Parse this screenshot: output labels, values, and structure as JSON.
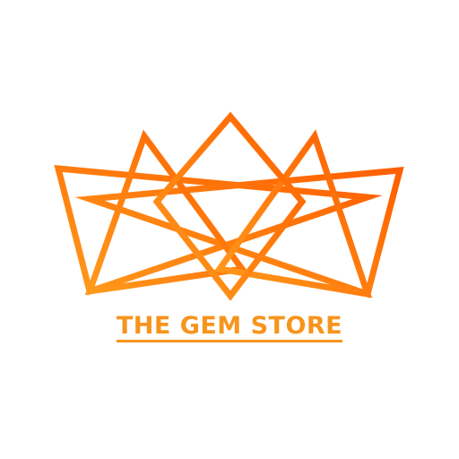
{
  "brand": {
    "name": "THE GEM STORE"
  },
  "logo": {
    "icon": "crown-icon",
    "gradient_start": "#ff9a1c",
    "gradient_mid": "#ff7d0e",
    "gradient_end": "#ff5f00",
    "text_color": "#f7941d"
  }
}
